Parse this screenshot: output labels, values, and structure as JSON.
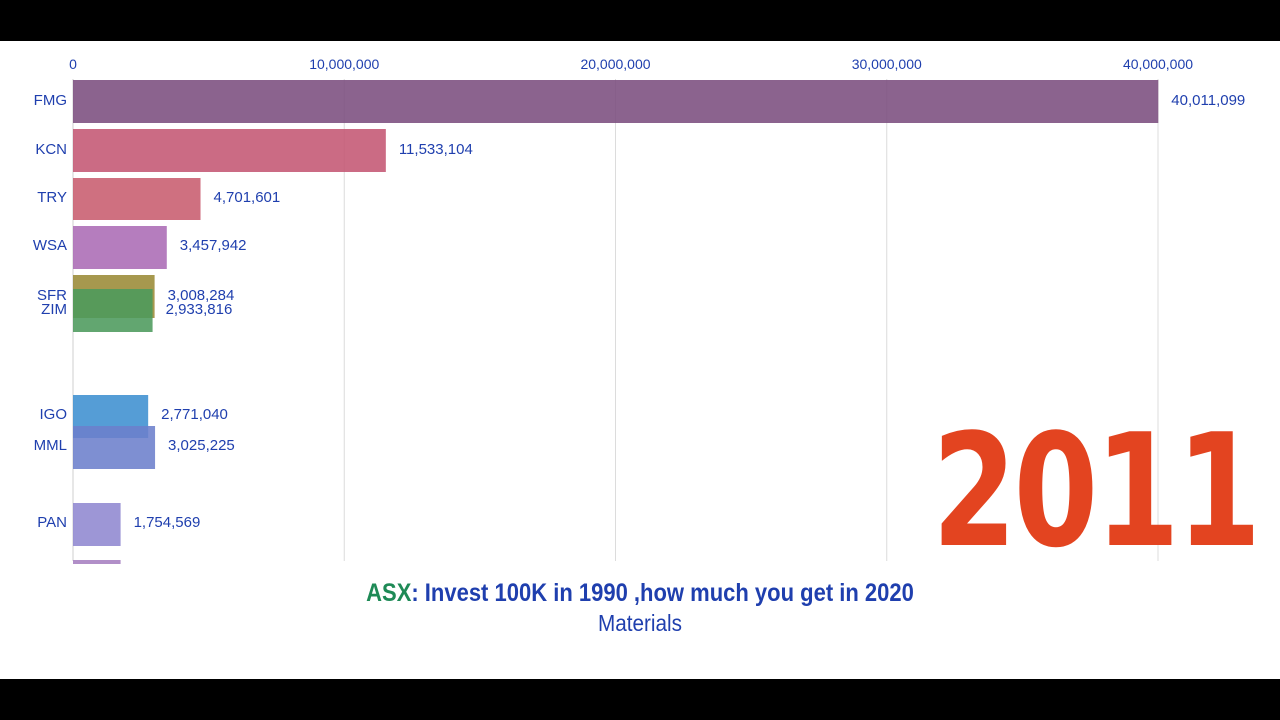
{
  "chart_data": {
    "type": "bar",
    "orientation": "horizontal",
    "title_prefix": "ASX",
    "title": ": Invest 100K in 1990 ,how much you get in 2020",
    "subtitle": "Materials",
    "year": "2011",
    "x_ticks": [
      0,
      10000000,
      20000000,
      30000000,
      40000000
    ],
    "x_tick_labels": [
      "0",
      "10,000,000",
      "20,000,000",
      "30,000,000",
      "40,000,000"
    ],
    "xlim": [
      0,
      40000000
    ],
    "grid": true,
    "bars": [
      {
        "name": "FMG",
        "value": 40011099,
        "value_label": "40,011,099",
        "color": "#7b4d7e"
      },
      {
        "name": "KCN",
        "value": 11533104,
        "value_label": "11,533,104",
        "color": "#c45673"
      },
      {
        "name": "TRY",
        "value": 4701601,
        "value_label": "4,701,601",
        "color": "#c85c6e"
      },
      {
        "name": "WSA",
        "value": 3457942,
        "value_label": "3,457,942",
        "color": "#ab6bb5"
      },
      {
        "name": "SFR",
        "value": 3008284,
        "value_label": "3,008,284",
        "color": "#9a8a36"
      },
      {
        "name": "ZIM",
        "value": 2933816,
        "value_label": "2,933,816",
        "color": "#4c9a5c"
      },
      {
        "name": "IGO",
        "value": 2771040,
        "value_label": "2,771,040",
        "color": "#3e8fd0"
      },
      {
        "name": "MML",
        "value": 3025225,
        "value_label": "3,025,225",
        "color": "#6c80cc"
      },
      {
        "name": "PAN",
        "value": 1754569,
        "value_label": "1,754,569",
        "color": "#8f88d0"
      },
      {
        "name": "",
        "value": 1754569,
        "value_label": "",
        "color": "#a67fc0"
      }
    ]
  }
}
